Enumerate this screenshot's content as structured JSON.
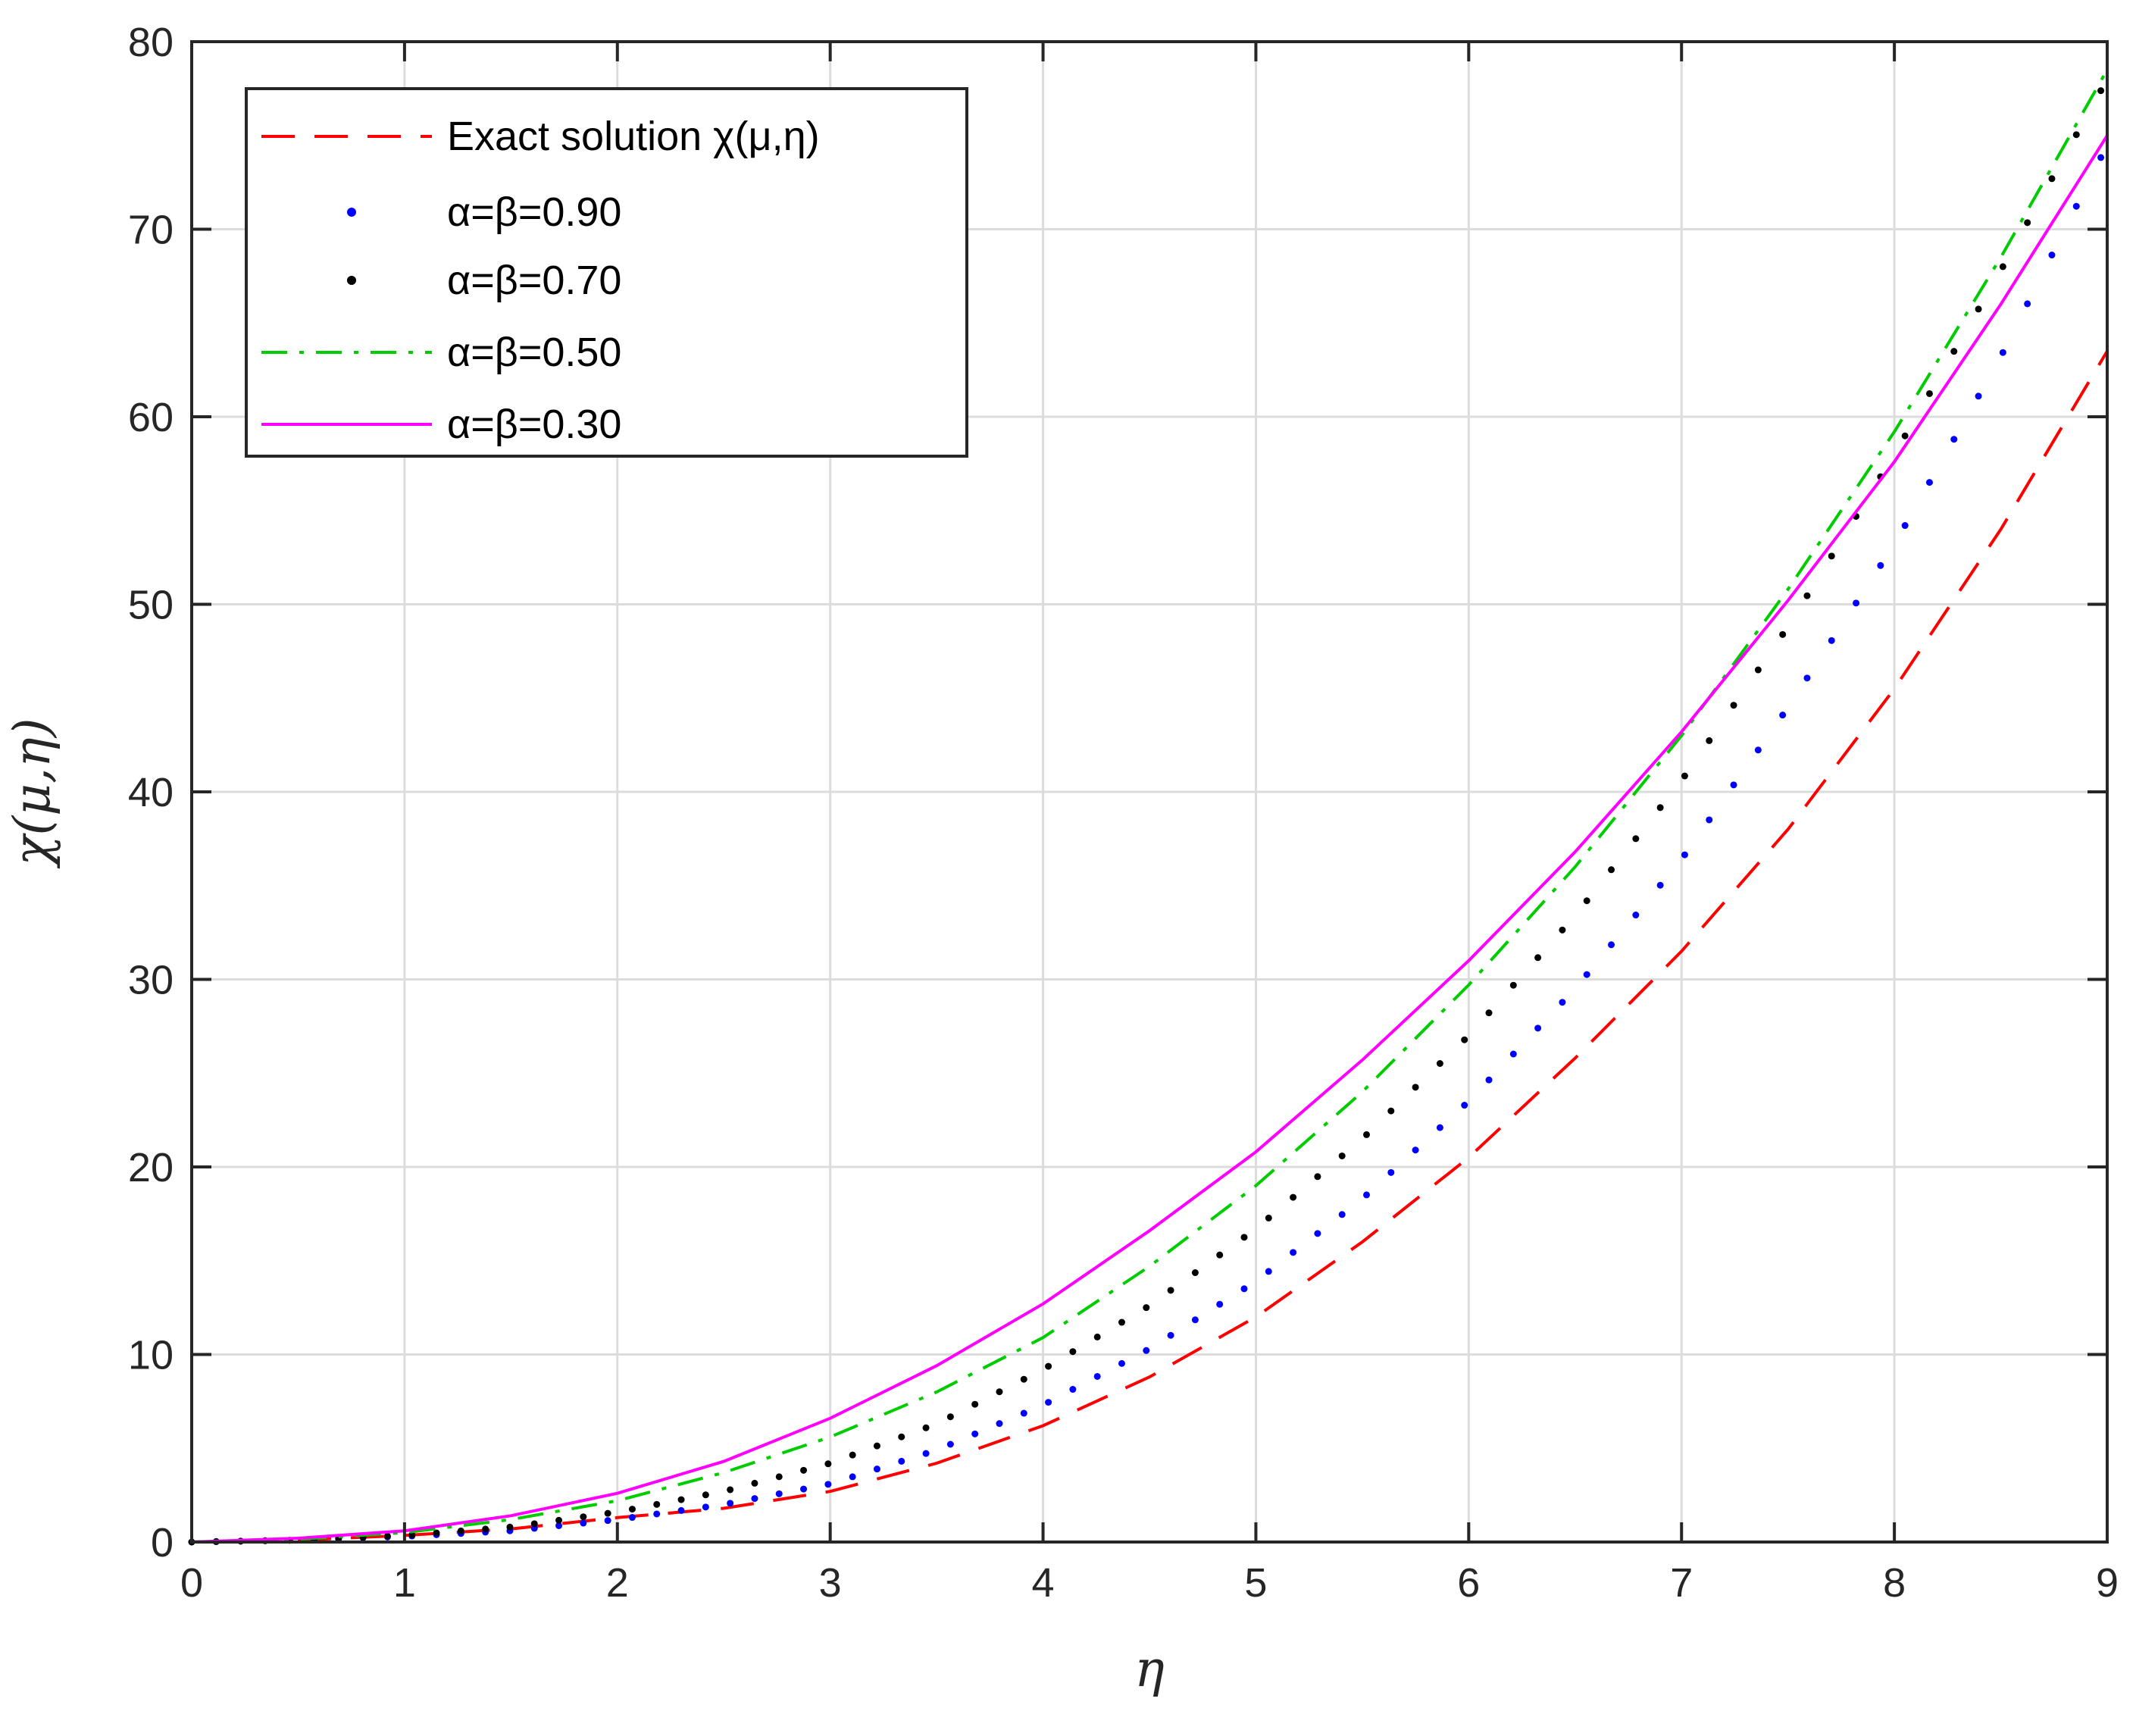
{
  "chart_data": {
    "type": "line",
    "xlabel": "η",
    "ylabel": "χ(μ,η)",
    "xlim": [
      0,
      9
    ],
    "ylim": [
      0,
      80
    ],
    "xticks": [
      0,
      1,
      2,
      3,
      4,
      5,
      6,
      7,
      8,
      9
    ],
    "yticks": [
      0,
      10,
      20,
      30,
      40,
      50,
      60,
      70,
      80
    ],
    "grid": true,
    "legend_position": "top-left",
    "x": [
      0,
      0.5,
      1,
      1.5,
      2,
      2.5,
      3,
      3.5,
      4,
      4.5,
      5,
      5.5,
      6,
      6.5,
      7,
      7.5,
      8,
      8.5,
      9
    ],
    "series": [
      {
        "name": "Exact solution χ(μ,η)",
        "style": "dashed",
        "color": "#ff0000",
        "values": [
          0,
          0.1,
          0.35,
          0.7,
          1.3,
          1.8,
          2.7,
          4.2,
          6.2,
          8.8,
          12.0,
          16.0,
          20.5,
          25.8,
          31.5,
          38.0,
          45.5,
          54.0,
          63.5
        ]
      },
      {
        "name": "α=β=0.90",
        "style": "dotted",
        "color": "#0000ff",
        "values": [
          0,
          0.1,
          0.3,
          0.6,
          1.2,
          2.0,
          3.1,
          4.9,
          7.3,
          10.3,
          13.9,
          18.3,
          23.5,
          29.5,
          36.4,
          44.5,
          53.2,
          63.2,
          74.5
        ]
      },
      {
        "name": "α=β=0.70",
        "style": "dotted",
        "color": "#000000",
        "values": [
          0,
          0.1,
          0.35,
          0.8,
          1.6,
          2.7,
          4.2,
          6.3,
          9.2,
          12.6,
          16.7,
          21.5,
          27.0,
          33.4,
          40.6,
          48.8,
          58.0,
          67.8,
          78.0
        ]
      },
      {
        "name": "α=β=0.50",
        "style": "dashdot",
        "color": "#00cc00",
        "values": [
          0,
          0.15,
          0.5,
          1.2,
          2.2,
          3.7,
          5.6,
          8.0,
          10.9,
          14.7,
          19.0,
          24.0,
          29.7,
          36.0,
          43.0,
          50.8,
          59.2,
          68.5,
          78.5
        ]
      },
      {
        "name": "α=β=0.30",
        "style": "solid",
        "color": "#ff00ff",
        "values": [
          0,
          0.2,
          0.6,
          1.4,
          2.6,
          4.3,
          6.6,
          9.4,
          12.7,
          16.6,
          20.8,
          25.7,
          31.0,
          36.8,
          43.2,
          50.2,
          57.6,
          66.0,
          75.0
        ]
      }
    ]
  }
}
